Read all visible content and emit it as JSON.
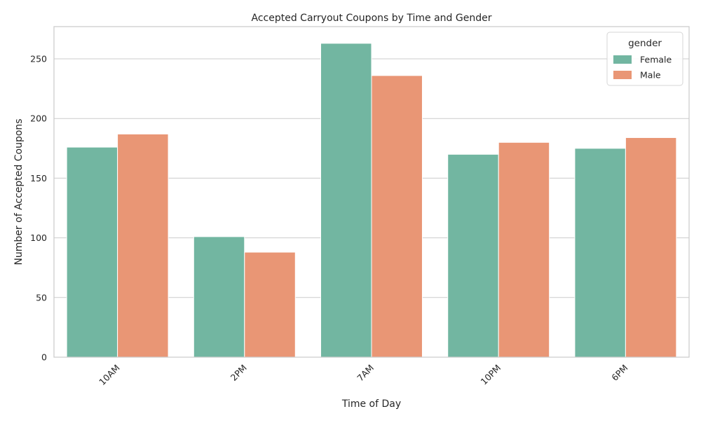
{
  "chart_data": {
    "type": "bar",
    "title": "Accepted Carryout Coupons by Time and Gender",
    "xlabel": "Time of Day",
    "ylabel": "Number of Accepted Coupons",
    "categories": [
      "10AM",
      "2PM",
      "7AM",
      "10PM",
      "6PM"
    ],
    "series": [
      {
        "name": "Female",
        "color": "#72b6a1",
        "values": [
          176,
          101,
          263,
          170,
          175
        ]
      },
      {
        "name": "Male",
        "color": "#e99675",
        "values": [
          187,
          88,
          236,
          180,
          184
        ]
      }
    ],
    "ylim": [
      0,
      277
    ],
    "yticks": [
      "0",
      "50",
      "100",
      "150",
      "200",
      "250"
    ],
    "grid": "horizontal",
    "legend": {
      "title": "gender",
      "placement": "top-right"
    },
    "x_tick_rotation": "45 degrees"
  }
}
